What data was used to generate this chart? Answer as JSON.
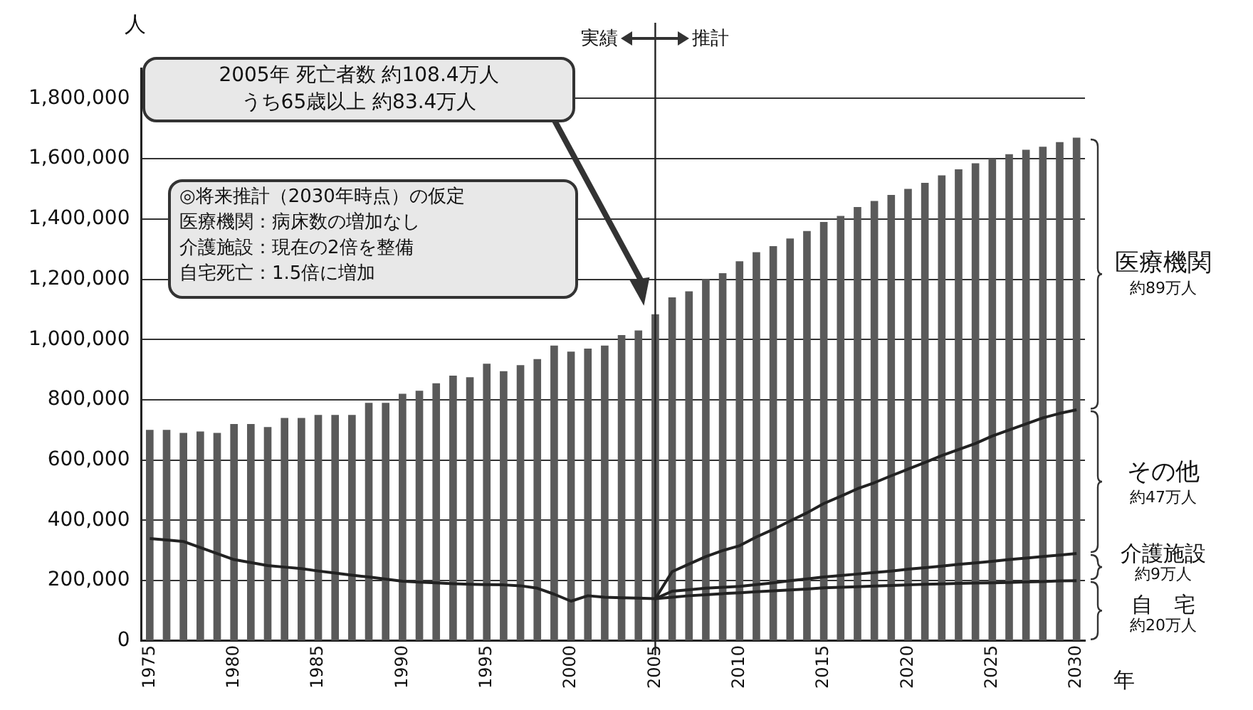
{
  "chart_data": {
    "type": "bar",
    "xlabel": "年",
    "ylabel": "人",
    "categories": [
      "1975",
      null,
      null,
      null,
      null,
      "1980",
      null,
      null,
      null,
      null,
      "1985",
      null,
      null,
      null,
      null,
      "1990",
      null,
      null,
      null,
      null,
      "1995",
      null,
      null,
      null,
      null,
      "2000",
      null,
      null,
      null,
      null,
      "2005",
      null,
      null,
      null,
      null,
      "2010",
      null,
      null,
      null,
      null,
      "2015",
      null,
      null,
      null,
      null,
      "2020",
      null,
      null,
      null,
      null,
      "2025",
      null,
      null,
      null,
      null,
      "2030"
    ],
    "series": [
      {
        "color": "#5a5a5a",
        "values": [
          700000,
          700000,
          690000,
          695000,
          690000,
          720000,
          720000,
          710000,
          740000,
          740000,
          750000,
          750000,
          750000,
          790000,
          790000,
          820000,
          830000,
          855000,
          880000,
          875000,
          920000,
          895000,
          915000,
          935000,
          980000,
          960000,
          970000,
          980000,
          1015000,
          1030000,
          1084000,
          1140000,
          1160000,
          1200000,
          1220000,
          1260000,
          1290000,
          1310000,
          1335000,
          1360000,
          1390000,
          1410000,
          1440000,
          1460000,
          1480000,
          1500000,
          1520000,
          1545000,
          1565000,
          1585000,
          1600000,
          1615000,
          1630000,
          1640000,
          1655000,
          1670000
        ]
      },
      {
        "type": "line",
        "color": "#222222",
        "values": [
          340000,
          335000,
          330000,
          310000,
          290000,
          270000,
          260000,
          250000,
          245000,
          240000,
          232000,
          225000,
          218000,
          212000,
          205000,
          198000,
          195000,
          193000,
          190000,
          188000,
          187000,
          186000,
          183000,
          175000,
          155000,
          132000,
          150000,
          145000,
          143000,
          142000,
          140000,
          145000,
          150000,
          153000,
          157000,
          160000,
          163000,
          166000,
          169000,
          172000,
          176000,
          178000,
          180000,
          182000,
          184000,
          186000,
          188000,
          189000,
          191000,
          192000,
          193000,
          194000,
          196000,
          197000,
          199000,
          200000
        ]
      },
      {
        "type": "line",
        "color": "#222222",
        "values": [
          null,
          null,
          null,
          null,
          null,
          null,
          null,
          null,
          null,
          null,
          null,
          null,
          null,
          null,
          null,
          null,
          null,
          null,
          null,
          null,
          null,
          null,
          null,
          null,
          null,
          null,
          null,
          null,
          null,
          null,
          140000,
          165000,
          170000,
          175000,
          178000,
          181000,
          187000,
          193000,
          200000,
          206000,
          212000,
          217000,
          222000,
          227000,
          232000,
          238000,
          243000,
          248000,
          254000,
          259000,
          264000,
          270000,
          275000,
          280000,
          285000,
          290000
        ]
      },
      {
        "type": "line",
        "color": "#222222",
        "values": [
          null,
          null,
          null,
          null,
          null,
          null,
          null,
          null,
          null,
          null,
          null,
          null,
          null,
          null,
          null,
          null,
          null,
          null,
          null,
          null,
          null,
          null,
          null,
          null,
          null,
          null,
          null,
          null,
          null,
          null,
          140000,
          230000,
          255000,
          280000,
          300000,
          316000,
          345000,
          370000,
          398000,
          425000,
          456000,
          480000,
          505000,
          525000,
          548000,
          570000,
          592000,
          615000,
          635000,
          655000,
          680000,
          700000,
          720000,
          740000,
          755000,
          767000
        ]
      }
    ],
    "ylim": [
      0,
      1900000
    ],
    "yticks": [
      0,
      {
        "value": 200000,
        "label": "200,000"
      },
      {
        "value": 400000,
        "label": "400,000"
      },
      {
        "value": 600000,
        "label": "600,000"
      },
      {
        "value": 800000,
        "label": "800,000"
      },
      {
        "value": 1000000,
        "label": "1,000,000"
      },
      {
        "value": 1200000,
        "label": "1,200,000"
      },
      {
        "value": 1400000,
        "label": "1,400,000"
      },
      {
        "value": 1600000,
        "label": "1,600,000"
      },
      {
        "value": 1800000,
        "label": "1,800,000"
      }
    ],
    "grid": "y",
    "legend": false,
    "marker": "none",
    "ref_lines": [
      {
        "axis": "x",
        "value": "2005",
        "color": "#222222"
      }
    ],
    "annotations": [
      "2005年 死亡者数 約108.4万人",
      "うち65歳以上 約83.4万人",
      "◎将来推計（2030年時点）の仮定",
      "医療機関：病床数の増加なし",
      "介護施設：現在の2倍を整備",
      "自宅死亡：1.5倍に増加",
      "実績",
      "推計",
      "医療機関",
      "約89万人",
      "その他",
      "約47万人",
      "介護施設",
      "約9万人",
      "自　宅",
      "約20万人"
    ]
  }
}
